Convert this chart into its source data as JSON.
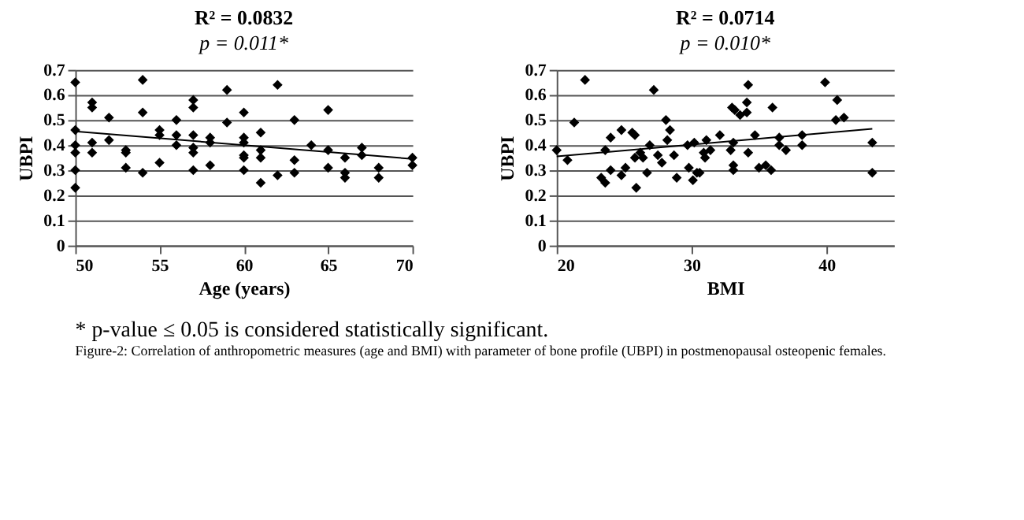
{
  "chart_data": [
    {
      "type": "scatter",
      "title": "R² = 0.0832",
      "subtitle": "p = 0.011*",
      "xlabel": "Age (years)",
      "ylabel": "UBPI",
      "xlim": [
        50,
        70
      ],
      "xticks": [
        50,
        55,
        60,
        65,
        70
      ],
      "ylim": [
        0,
        0.7
      ],
      "yticks": [
        0,
        0.1,
        0.2,
        0.3,
        0.4,
        0.5,
        0.6,
        0.7
      ],
      "grid": "y",
      "series": [
        {
          "type": "scatter",
          "marker": "diamond",
          "color": "#000000",
          "x": [
            50,
            50,
            50,
            50,
            50,
            50,
            51,
            51,
            51,
            51,
            52,
            52,
            53,
            53,
            53,
            54,
            54,
            54,
            55,
            55,
            55,
            56,
            56,
            56,
            57,
            57,
            57,
            57,
            57,
            57,
            58,
            58,
            58,
            59,
            59,
            60,
            60,
            60,
            60,
            60,
            60,
            61,
            61,
            61,
            61,
            62,
            62,
            63,
            63,
            63,
            64,
            65,
            65,
            65,
            66,
            66,
            66,
            67,
            67,
            68,
            68,
            70,
            70
          ],
          "values": [
            0.65,
            0.46,
            0.4,
            0.37,
            0.3,
            0.23,
            0.57,
            0.55,
            0.41,
            0.37,
            0.51,
            0.42,
            0.38,
            0.37,
            0.31,
            0.66,
            0.53,
            0.29,
            0.46,
            0.44,
            0.33,
            0.5,
            0.44,
            0.4,
            0.58,
            0.55,
            0.44,
            0.39,
            0.37,
            0.3,
            0.43,
            0.41,
            0.32,
            0.62,
            0.49,
            0.53,
            0.43,
            0.41,
            0.36,
            0.35,
            0.3,
            0.45,
            0.38,
            0.35,
            0.25,
            0.64,
            0.28,
            0.5,
            0.34,
            0.29,
            0.4,
            0.54,
            0.38,
            0.31,
            0.35,
            0.29,
            0.27,
            0.39,
            0.36,
            0.31,
            0.27,
            0.35,
            0.32
          ]
        },
        {
          "type": "line",
          "color": "#000000",
          "x": [
            50,
            70
          ],
          "values": [
            0.455,
            0.345
          ]
        }
      ],
      "annotations": [
        "* p-value ≤ 0.05 is considered statistically significant.",
        "Figure-2: Correlation of anthropometric measures (age and BMI) with parameter of bone profile (UBPI) in postmenopausal osteopenic females."
      ]
    },
    {
      "type": "scatter",
      "title": "R² = 0.0714",
      "subtitle": "p = 0.010*",
      "xlabel": "BMI",
      "ylabel": "UBPI",
      "xlim": [
        20,
        45
      ],
      "xticks": [
        20,
        30,
        40
      ],
      "ylim": [
        0,
        0.7
      ],
      "yticks": [
        0,
        0.1,
        0.2,
        0.3,
        0.4,
        0.5,
        0.6,
        0.7
      ],
      "grid": "y",
      "series": [
        {
          "type": "scatter",
          "marker": "diamond",
          "color": "#000000",
          "x": [
            20,
            20.8,
            21.3,
            22.1,
            23.3,
            23.6,
            23.6,
            24.0,
            24.0,
            24.8,
            24.8,
            25.1,
            25.6,
            25.8,
            25.8,
            25.9,
            26.2,
            26.4,
            26.7,
            26.9,
            27.2,
            27.5,
            27.8,
            28.1,
            28.2,
            28.4,
            28.7,
            28.9,
            29.7,
            29.8,
            30.1,
            30.2,
            30.4,
            30.6,
            30.9,
            31.0,
            31.1,
            31.4,
            32.1,
            32.9,
            33.0,
            33.2,
            33.1,
            33.1,
            33.1,
            33.6,
            34.1,
            34.1,
            34.2,
            34.2,
            34.7,
            35.0,
            35.5,
            35.9,
            36.0,
            36.5,
            36.5,
            37.0,
            38.2,
            38.2,
            39.9,
            40.8,
            40.7,
            41.3,
            43.4,
            43.4
          ],
          "values": [
            0.38,
            0.34,
            0.49,
            0.66,
            0.27,
            0.25,
            0.38,
            0.3,
            0.43,
            0.46,
            0.28,
            0.31,
            0.45,
            0.44,
            0.35,
            0.23,
            0.37,
            0.35,
            0.29,
            0.4,
            0.62,
            0.36,
            0.33,
            0.5,
            0.42,
            0.46,
            0.36,
            0.27,
            0.4,
            0.31,
            0.26,
            0.41,
            0.29,
            0.29,
            0.37,
            0.35,
            0.42,
            0.38,
            0.44,
            0.38,
            0.55,
            0.54,
            0.41,
            0.32,
            0.3,
            0.52,
            0.57,
            0.53,
            0.64,
            0.37,
            0.44,
            0.31,
            0.32,
            0.3,
            0.55,
            0.43,
            0.4,
            0.38,
            0.44,
            0.4,
            0.65,
            0.58,
            0.5,
            0.51,
            0.41,
            0.29
          ]
        },
        {
          "type": "line",
          "color": "#000000",
          "x": [
            20,
            43.4
          ],
          "values": [
            0.355,
            0.465
          ]
        }
      ]
    }
  ]
}
